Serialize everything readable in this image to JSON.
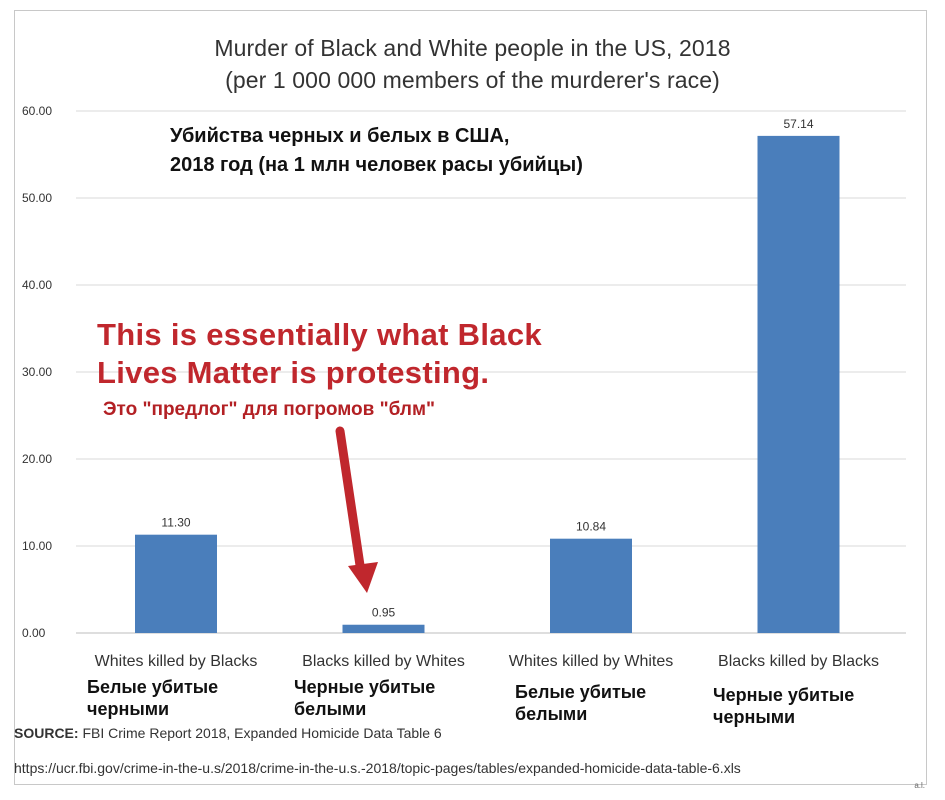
{
  "chart_data": {
    "type": "bar",
    "title": "Murder of Black and White people in the US, 2018",
    "subtitle": "(per 1 000 000 members of the murderer's race)",
    "categories": [
      "Whites killed by Blacks",
      "Blacks killed by Whites",
      "Whites killed by Whites",
      "Blacks killed by Blacks"
    ],
    "values": [
      11.3,
      0.95,
      10.84,
      57.14
    ],
    "value_labels": [
      "11.30",
      "0.95",
      "10.84",
      "57.14"
    ],
    "ylim": [
      0,
      60
    ],
    "yticks": [
      "0.00",
      "10.00",
      "20.00",
      "30.00",
      "40.00",
      "50.00",
      "60.00"
    ],
    "grid": true,
    "bar_color": "#4a7ebb"
  },
  "overlay_ru": [
    "Убийства черных и белых в США,",
    "2018 год (на 1 млн человек расы убийцы)"
  ],
  "annotation": {
    "line1": "This is essentially what Black",
    "line2": "Lives Matter is protesting.",
    "ru": "Это \"предлог\" для погромов \"блм\"",
    "color": "#c0272d"
  },
  "category_ru": [
    [
      "Белые убитые",
      "черными"
    ],
    [
      "Черные убитые",
      "белыми"
    ],
    [
      "Белые убитые",
      "белыми"
    ],
    [
      "Черные убитые",
      "черными"
    ]
  ],
  "source": {
    "label": "SOURCE:",
    "text": " FBI Crime Report 2018, Expanded Homicide Data Table 6",
    "url": "https://ucr.fbi.gov/crime-in-the-u.s/2018/crime-in-the-u.s.-2018/topic-pages/tables/expanded-homicide-data-table-6.xls"
  },
  "signature": "a.l."
}
